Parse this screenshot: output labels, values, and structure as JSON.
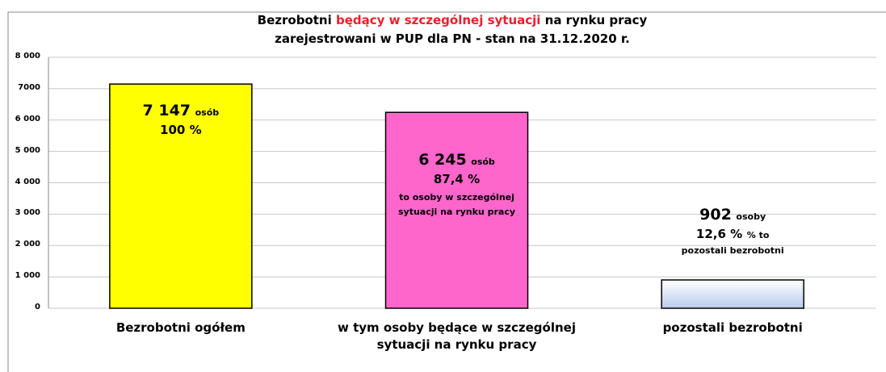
{
  "chart_data": {
    "type": "bar",
    "title": {
      "before": "Bezrobotni",
      "highlight": "będący w szczególnej sytuacji",
      "after": "na rynku pracy"
    },
    "subtitle": "zarejestrowani w PUP dla PN - stan na 31.12.2020 r.",
    "categories": [
      "Bezrobotni ogółem",
      "w tym osoby będące w szczególnej sytuacji na rynku pracy",
      "pozostali bezrobotni"
    ],
    "values": [
      7147,
      6245,
      902
    ],
    "value_labels": [
      "7 147",
      "6 245",
      "902"
    ],
    "bar_labels": [
      {
        "unit": "osób",
        "percent": "100 %"
      },
      {
        "unit": "osób",
        "percent": "87,4 %",
        "note": "to osoby w szczególnej sytuacji na rynku pracy"
      },
      {
        "unit": "osoby",
        "percent": "12,6 %",
        "note": "% to pozostali bezrobotni"
      }
    ],
    "colors": [
      "#ffff00",
      "#ff66cc",
      "#b8cbec"
    ],
    "highlight_color": "#e8212b",
    "ylim": [
      0,
      8000
    ],
    "yticks": [
      0,
      {
        "value": 1000,
        "label": "1 000"
      },
      {
        "value": 2000,
        "label": "2 000"
      },
      {
        "value": 3000,
        "label": "3 000"
      },
      {
        "value": 4000,
        "label": "4 000"
      },
      {
        "value": 5000,
        "label": "5 000"
      },
      {
        "value": 6000,
        "label": "6 000"
      },
      7000,
      {
        "value": 8000,
        "label": "8 000"
      }
    ],
    "grid": true
  }
}
